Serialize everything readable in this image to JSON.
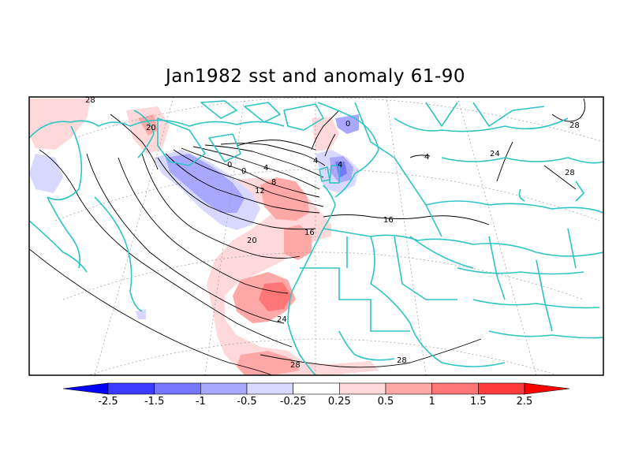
{
  "title": "Jan1982 sst and anomaly 61-90",
  "colors": {
    "coast": "#2ec4c4",
    "contour": "#000000",
    "frame": "#000000",
    "graticule": "#9a9a9a"
  },
  "colorbar": {
    "segments": [
      {
        "color": "#0000ff"
      },
      {
        "color": "#3b3bff"
      },
      {
        "color": "#7676ff"
      },
      {
        "color": "#a8a8ff"
      },
      {
        "color": "#d9d9ff"
      },
      {
        "color": "#ffffff"
      },
      {
        "color": "#ffd9d9"
      },
      {
        "color": "#ffa8a8"
      },
      {
        "color": "#ff7676"
      },
      {
        "color": "#ff3b3b"
      },
      {
        "color": "#ff0000"
      }
    ],
    "labels": [
      "-2.5",
      "-1.5",
      "-1",
      "-0.5",
      "-0.25",
      "0.25",
      "0.5",
      "1",
      "1.5",
      "2.5"
    ]
  },
  "contour_labels": [
    "20",
    "28",
    "0",
    "0",
    "4",
    "4",
    "8",
    "12",
    "16",
    "16",
    "20",
    "24",
    "24",
    "28",
    "28",
    "0",
    "4",
    "4",
    "28",
    "28"
  ]
}
